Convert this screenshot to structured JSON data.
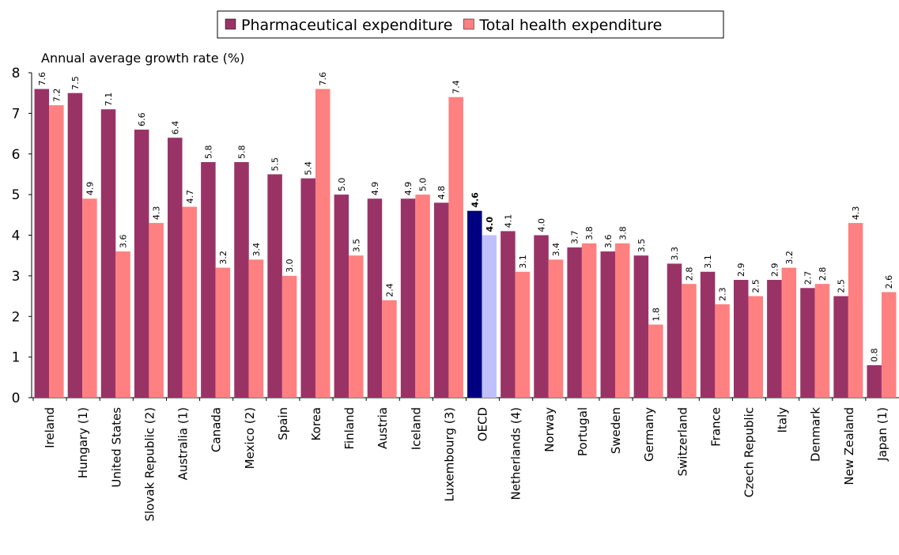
{
  "chart_data": {
    "type": "bar",
    "y_axis_label": "Annual average growth rate (%)",
    "categories": [
      "Ireland",
      "Hungary (1)",
      "United States",
      "Slovak Republic (2)",
      "Australia (1)",
      "Canada",
      "Mexico (2)",
      "Spain",
      "Korea",
      "Finland",
      "Austria",
      "Iceland",
      "Luxembourg (3)",
      "OECD",
      "Netherlands (4)",
      "Norway",
      "Portugal",
      "Sweden",
      "Germany",
      "Switzerland",
      "France",
      "Czech Republic",
      "Italy",
      "Denmark",
      "New Zealand",
      "Japan (1)"
    ],
    "series": [
      {
        "name": "Pharmaceutical expenditure",
        "color": "#993366",
        "highlight_color": "#000080",
        "values": [
          7.6,
          7.5,
          7.1,
          6.6,
          6.4,
          5.8,
          5.8,
          5.5,
          5.4,
          5.0,
          4.9,
          4.9,
          4.8,
          4.6,
          4.1,
          4.0,
          3.7,
          3.6,
          3.5,
          3.3,
          3.1,
          2.9,
          2.9,
          2.7,
          2.5,
          0.8
        ],
        "value_labels": [
          "7.6",
          "7.5",
          "7.1",
          "6.6",
          "6.4",
          "5.8",
          "5.8",
          "5.5",
          "5.4",
          "5.0",
          "4.9",
          "4.9",
          "4.8",
          "4.6",
          "4.1",
          "4.0",
          "3.7",
          "3.6",
          "3.5",
          "3.3",
          "3.1",
          "2.9",
          "2.9",
          "2.7",
          "2.5",
          "0.8"
        ]
      },
      {
        "name": "Total health expenditure",
        "color": "#ff8080",
        "highlight_color": "#c0c0ff",
        "values": [
          7.2,
          4.9,
          3.6,
          4.3,
          4.7,
          3.2,
          3.4,
          3.0,
          7.6,
          3.5,
          2.4,
          5.0,
          7.4,
          4.0,
          3.1,
          3.4,
          3.8,
          3.8,
          1.8,
          2.8,
          2.3,
          2.5,
          3.2,
          2.8,
          4.3,
          2.6
        ],
        "value_labels": [
          "7.2",
          "4.9",
          "3.6",
          "4.3",
          "4.7",
          "3.2",
          "3.4",
          "3.0",
          "7.6",
          "3.5",
          "2.4",
          "5.0",
          "7.4",
          "4.0",
          "3.1",
          "3.4",
          "3.8",
          "3.8",
          "1.8",
          "2.8",
          "2.3",
          "2.5",
          "3.2",
          "2.8",
          "4.3",
          "2.6"
        ]
      }
    ],
    "highlight": "OECD",
    "ylim": [
      0,
      8
    ],
    "yticks": [
      0,
      1,
      2,
      3,
      4,
      5,
      6,
      7,
      8
    ],
    "grid": false,
    "legend": "top"
  }
}
